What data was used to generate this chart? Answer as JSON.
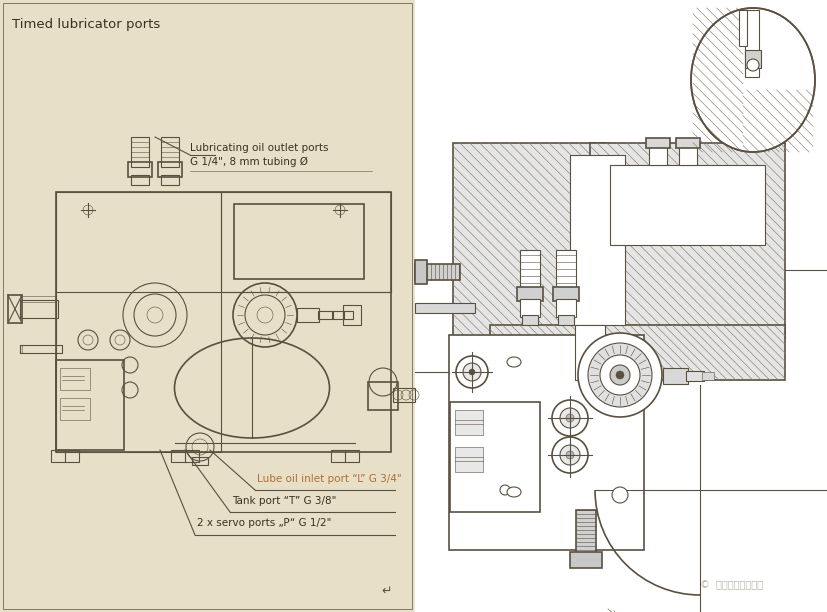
{
  "bg_color_left": "#e8dfc8",
  "bg_color_right": "#ffffff",
  "line_color": "#5a5040",
  "line_color_dark": "#3a3020",
  "text_color": "#3a3020",
  "highlight_color": "#b07030",
  "hatch_color": "#888070",
  "title_left": "Timed lubricator ports",
  "label1_line1": "Lubricating oil outlet ports",
  "label1_line2": "G 1/4\", 8 mm tubing Ø",
  "label2": "Lube oil inlet port “L” G 3/4\"",
  "label3": "Tank port “T” G 3/8\"",
  "label4": "2 x servo ports „P“ G 1/2\"",
  "watermark": "©  积踹踱遗于乐于心",
  "figsize": [
    8.28,
    6.12
  ],
  "dpi": 100
}
